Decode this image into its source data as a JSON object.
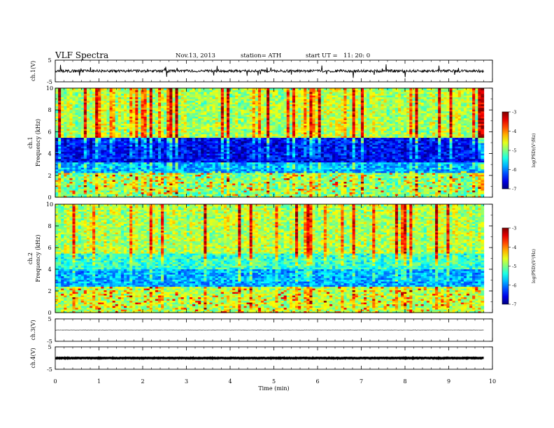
{
  "header": {
    "title": "VLF  Spectra",
    "date": "Nov.13, 2013",
    "station": "station= ATH",
    "start_ut_label": "start  UT  =",
    "start_ut_value": "11: 20: 0"
  },
  "chart_data": {
    "type": "heatmap",
    "x_axis": {
      "label": "Time  (min)",
      "range": [
        0,
        10
      ],
      "ticks": [
        0,
        1,
        2,
        3,
        4,
        5,
        6,
        7,
        8,
        9,
        10
      ],
      "data_end": 9.8
    },
    "panels": [
      {
        "type": "line",
        "name": "ch.1",
        "ylabel": "ch.1(V)",
        "ylim": [
          -5,
          5
        ],
        "yticks": [
          5,
          -5
        ],
        "baseline": 0.0,
        "noise_amplitude": 0.6,
        "spikes": "frequent, up to about ±3 V"
      },
      {
        "type": "heatmap",
        "name": "ch.1",
        "ylabel": "ch.1\nFrequency  (kHz)",
        "ylim": [
          0,
          10
        ],
        "yticks": [
          0,
          2,
          4,
          6,
          8,
          10
        ],
        "colorbar": {
          "label": "log(PSD)(V²/Hz)",
          "range": [
            -7,
            -3
          ],
          "ticks": [
            -3,
            -4,
            -5,
            -6,
            -7
          ]
        },
        "bands": [
          {
            "f_range": [
              0,
              2.2
            ],
            "typical_log_psd": -5.0,
            "description": "horizontal harmonic lines, green/yellow with red lines near 0.3 and 0.8 kHz"
          },
          {
            "f_range": [
              2.2,
              3.2
            ],
            "typical_log_psd": -5.8,
            "description": "cyan/light-blue horizontal lines"
          },
          {
            "f_range": [
              3.2,
              5.5
            ],
            "typical_log_psd": -6.5,
            "description": "dark blue background"
          },
          {
            "f_range": [
              5.5,
              10
            ],
            "typical_log_psd": -4.8,
            "description": "green with red/yellow vertical sferic streaks"
          }
        ]
      },
      {
        "type": "heatmap",
        "name": "ch.2",
        "ylabel": "ch.2\nFrequency  (kHz)",
        "ylim": [
          0,
          10
        ],
        "yticks": [
          0,
          2,
          4,
          6,
          8,
          10
        ],
        "colorbar": {
          "label": "log(PSD)(V²/Hz)",
          "range": [
            -7,
            -3
          ],
          "ticks": [
            -3,
            -4,
            -5,
            -6,
            -7
          ]
        },
        "bands": [
          {
            "f_range": [
              0,
              2.5
            ],
            "typical_log_psd": -4.8,
            "description": "yellow/green with red horizontal harmonic lines"
          },
          {
            "f_range": [
              2.5,
              4.0
            ],
            "typical_log_psd": -5.8,
            "description": "cyan and blue horizontal lines"
          },
          {
            "f_range": [
              4.0,
              5.5
            ],
            "typical_log_psd": -5.3,
            "description": "blue/cyan mixed band"
          },
          {
            "f_range": [
              5.5,
              10
            ],
            "typical_log_psd": -4.8,
            "description": "green/yellow with red vertical streaks"
          }
        ]
      },
      {
        "type": "line",
        "name": "ch.3",
        "ylabel": "ch.3(V)",
        "ylim": [
          -5,
          5
        ],
        "yticks": [
          5,
          -5
        ],
        "baseline": 0.0,
        "noise_amplitude": 0.05
      },
      {
        "type": "line",
        "name": "ch.4",
        "ylabel": "ch.4(V)",
        "ylim": [
          -5,
          5
        ],
        "yticks": [
          5,
          -5
        ],
        "baseline": 0.0,
        "noise_amplitude": 0.12,
        "style": "thick"
      }
    ]
  }
}
